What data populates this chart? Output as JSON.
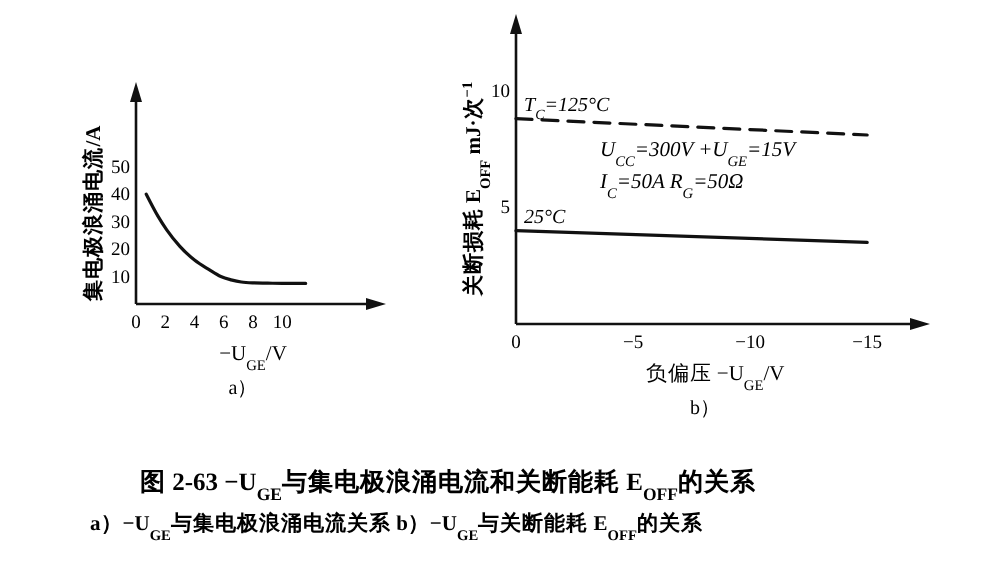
{
  "chart_data": [
    {
      "type": "line",
      "title": "a）",
      "xlabel": "−U$_{GE}$/V",
      "ylabel": "集电极浪涌电流/A",
      "xlim": [
        0,
        16
      ],
      "ylim": [
        0,
        75
      ],
      "xticks": [
        0,
        2,
        4,
        6,
        8,
        10
      ],
      "yticks": [
        10,
        20,
        30,
        40,
        50
      ],
      "grid": false,
      "marker": "none",
      "series": [
        {
          "color": "#111111",
          "x": [
            0.7,
            1.5,
            2.1,
            3,
            4,
            5,
            5.8,
            6.5,
            7.2,
            8,
            9,
            10,
            11.6
          ],
          "values": [
            40,
            32,
            27,
            21,
            16,
            12.5,
            10,
            8.8,
            8,
            7.7,
            7.6,
            7.5,
            7.5
          ],
          "line_style": "solid"
        }
      ]
    },
    {
      "type": "line",
      "title": "b）",
      "xlabel": "负偏压 −U$_{GE}$/V",
      "ylabel": "关断损耗 E$_{OFF}$ mJ·次$^{−1}$",
      "xlim": [
        0,
        -17
      ],
      "ylim": [
        0,
        12.6
      ],
      "xticks": [
        0,
        {
          "value": -5,
          "label": "−5"
        },
        {
          "value": -10,
          "label": "−10"
        },
        {
          "value": -15,
          "label": "−15"
        }
      ],
      "yticks": [
        5,
        10
      ],
      "grid": false,
      "marker": "none",
      "series": [
        {
          "name": "T$_{C}$=125°C",
          "color": "#111111",
          "x": [
            0,
            -15
          ],
          "values": [
            8.8,
            8.1
          ],
          "line_style": "dashed"
        },
        {
          "name": "25°C",
          "color": "#111111",
          "x": [
            0,
            -15
          ],
          "values": [
            4.0,
            3.5
          ],
          "line_style": "solid"
        }
      ],
      "annotations": [
        "U$_{CC}$=300V  +U$_{GE}$=15V",
        "I$_{C}$=50A      R$_{G}$=50Ω",
        "图 2-63   −U$_{GE}$与集电极浪涌电流和关断能耗 E$_{OFF}$的关系",
        "a）−U$_{GE}$与集电极浪涌电流关系   b）−U$_{GE}$与关断能耗 E$_{OFF}$的关系"
      ]
    }
  ]
}
